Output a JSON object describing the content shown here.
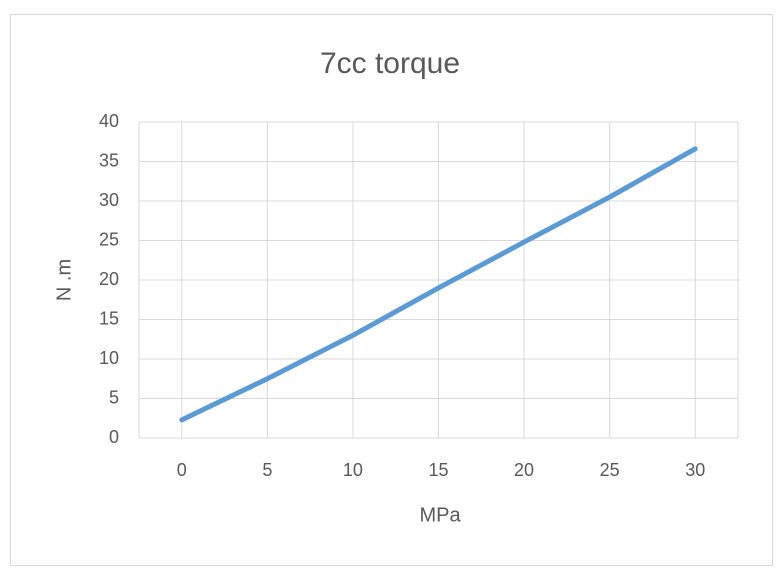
{
  "chart_data": {
    "type": "line",
    "title": "7cc torque",
    "xlabel": "MPa",
    "ylabel": "N .m",
    "x": [
      0,
      5,
      10,
      15,
      20,
      25,
      30
    ],
    "series": [
      {
        "name": "torque",
        "color": "#5b9bd5",
        "values": [
          2.3,
          7.5,
          13,
          19,
          24.8,
          30.5,
          36.6
        ]
      }
    ],
    "xlim": [
      -2.5,
      32.5
    ],
    "xticks": [
      0,
      5,
      10,
      15,
      20,
      25,
      30
    ],
    "ylim": [
      0,
      40
    ],
    "yticks": [
      0,
      5,
      10,
      15,
      20,
      25,
      30,
      35,
      40
    ],
    "grid": true
  }
}
